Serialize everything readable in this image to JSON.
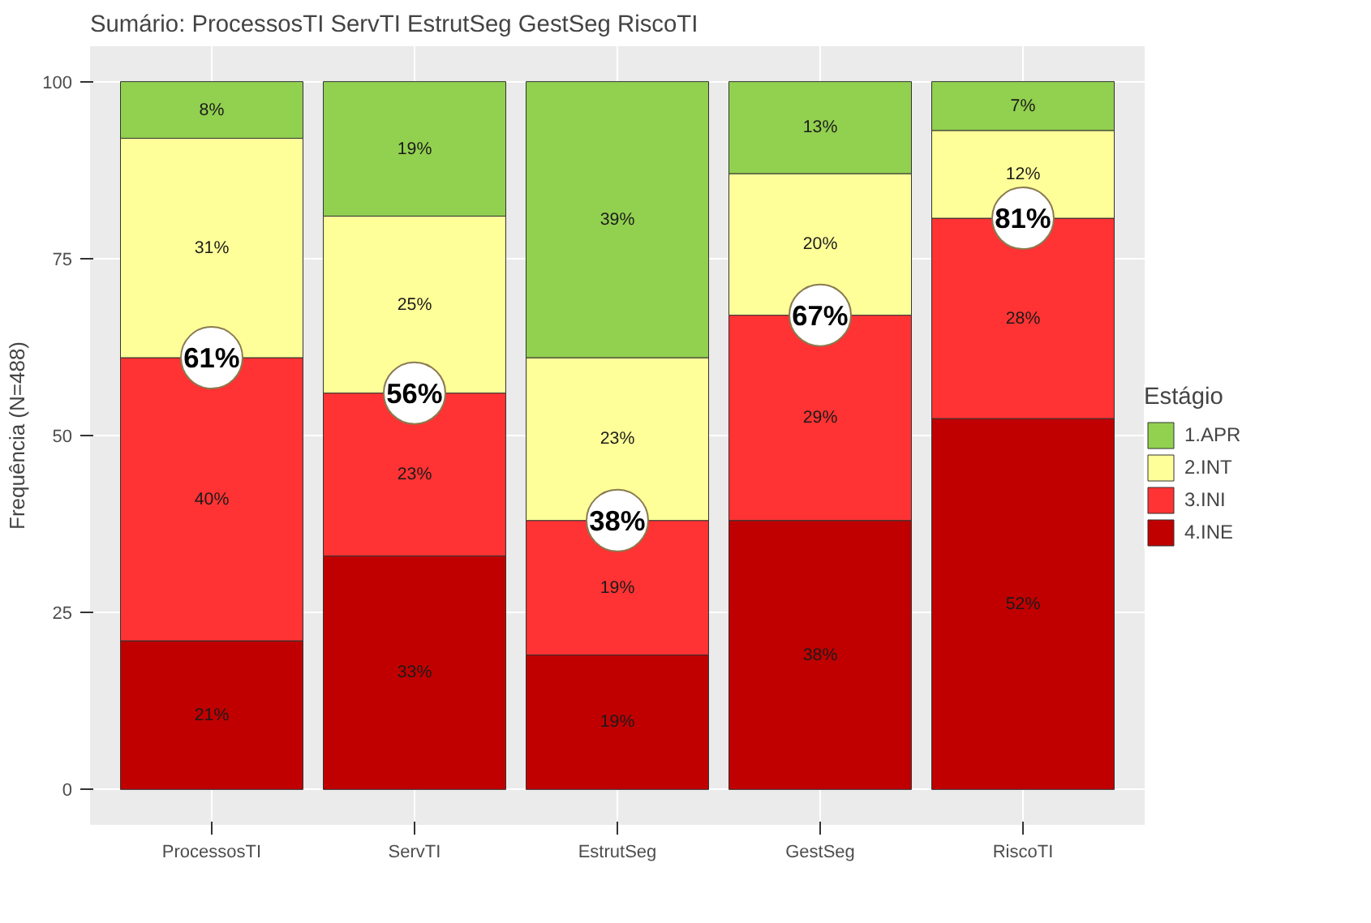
{
  "chart_data": {
    "type": "bar",
    "title": "Sumário: ProcessosTI ServTI EstrutSeg GestSeg RiscoTI",
    "ylabel": "Frequência (N=488)",
    "legend_title": "Estágio",
    "categories": [
      "ProcessosTI",
      "ServTI",
      "EstrutSeg",
      "GestSeg",
      "RiscoTI"
    ],
    "stacked": true,
    "series": [
      {
        "name": "4.INE",
        "color": "#c00000",
        "values": [
          21,
          33,
          19,
          38,
          52.4
        ],
        "value_labels": [
          "21%",
          "33%",
          "19%",
          "38%",
          "52%"
        ]
      },
      {
        "name": "3.INI",
        "color": "#ff3333",
        "values": [
          40,
          23,
          19,
          29,
          28.3
        ],
        "value_labels": [
          "40%",
          "23%",
          "19%",
          "29%",
          "28%"
        ]
      },
      {
        "name": "2.INT",
        "color": "#ffff99",
        "values": [
          31,
          25,
          23,
          20,
          12.4
        ],
        "value_labels": [
          "31%",
          "25%",
          "23%",
          "20%",
          "12%"
        ]
      },
      {
        "name": "1.APR",
        "color": "#92d050",
        "values": [
          8,
          19,
          39,
          13,
          6.9
        ],
        "value_labels": [
          "8%",
          "19%",
          "39%",
          "13%",
          "7%"
        ]
      }
    ],
    "annotations": [
      {
        "text": "61%",
        "x": "ProcessosTI",
        "y": 61
      },
      {
        "text": "56%",
        "x": "ServTI",
        "y": 56
      },
      {
        "text": "38%",
        "x": "EstrutSeg",
        "y": 38
      },
      {
        "text": "67%",
        "x": "GestSeg",
        "y": 67
      },
      {
        "text": "81%",
        "x": "RiscoTI",
        "y": 80.7
      }
    ],
    "ylim": [
      -5,
      105
    ],
    "yticks": [
      0,
      25,
      50,
      75,
      100
    ],
    "grid": true,
    "legend": "right"
  }
}
